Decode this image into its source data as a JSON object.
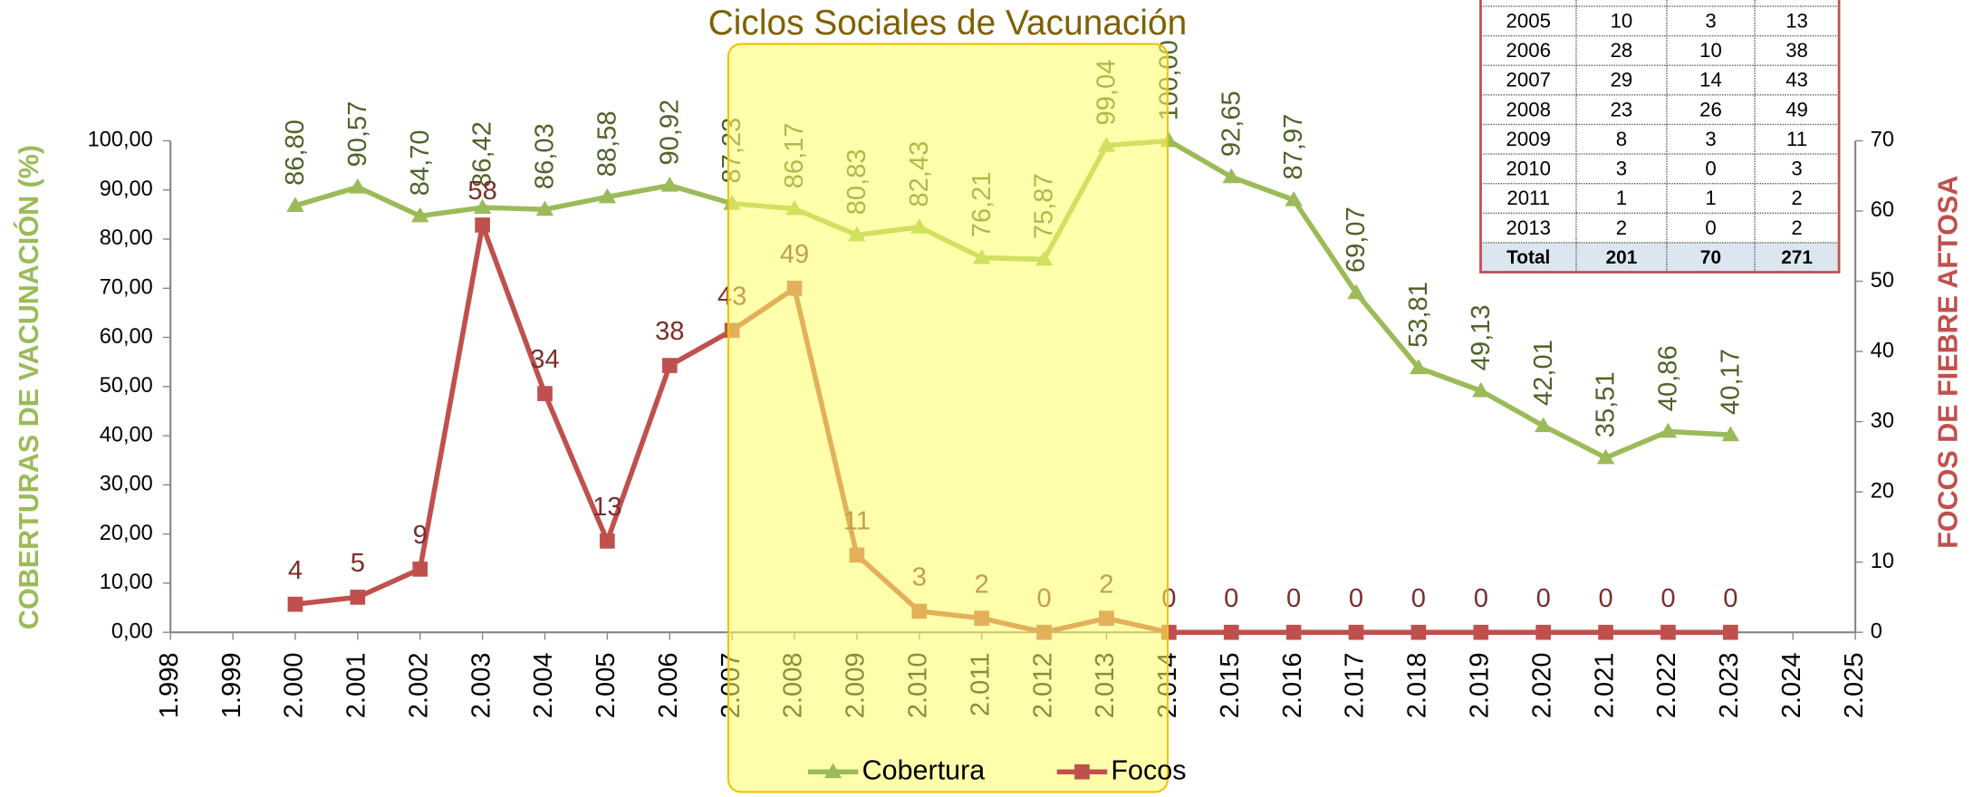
{
  "chart_data": {
    "type": "line",
    "title": "Ciclos Sociales de Vacunación",
    "ylabel": "COBERTURAS DE VACUNACIÓN (%)",
    "y2label": "FOCOS DE FIEBRE AFTOSA",
    "x": [
      2000,
      2001,
      2002,
      2003,
      2004,
      2005,
      2006,
      2007,
      2008,
      2009,
      2010,
      2011,
      2012,
      2013,
      2014,
      2015,
      2016,
      2017,
      2018,
      2019,
      2020,
      2021,
      2022,
      2023
    ],
    "series": [
      {
        "name": "Cobertura",
        "color": "#9bbb59",
        "marker": "triangle",
        "values": [
          86.8,
          90.57,
          84.7,
          86.42,
          86.03,
          88.58,
          90.92,
          87.23,
          86.17,
          80.83,
          82.43,
          76.21,
          75.87,
          99.04,
          100.0,
          92.65,
          87.97,
          69.07,
          53.81,
          49.13,
          42.01,
          35.51,
          40.86,
          40.17
        ],
        "value_labels": [
          "86,80",
          "90,57",
          "84,70",
          "86,42",
          "86,03",
          "88,58",
          "90,92",
          "87,23",
          "86,17",
          "80,83",
          "82,43",
          "76,21",
          "75,87",
          "99,04",
          "100,00",
          "92,65",
          "87,97",
          "69,07",
          "53,81",
          "49,13",
          "42,01",
          "35,51",
          "40,86",
          "40,17"
        ]
      },
      {
        "name": "Focos",
        "color": "#c0504d",
        "marker": "square",
        "axis": "y2",
        "values": [
          4,
          5,
          9,
          58,
          34,
          13,
          38,
          43,
          49,
          11,
          3,
          2,
          0,
          2,
          0,
          0,
          0,
          0,
          0,
          0,
          0,
          0,
          0,
          0
        ]
      }
    ],
    "xlim": [
      1998,
      2025
    ],
    "xticks": [
      {
        "value": 1998,
        "label": "1.998"
      },
      {
        "value": 1999,
        "label": "1.999"
      },
      {
        "value": 2000,
        "label": "2.000"
      },
      {
        "value": 2001,
        "label": "2.001"
      },
      {
        "value": 2002,
        "label": "2.002"
      },
      {
        "value": 2003,
        "label": "2.003"
      },
      {
        "value": 2004,
        "label": "2.004"
      },
      {
        "value": 2005,
        "label": "2.005"
      },
      {
        "value": 2006,
        "label": "2.006"
      },
      {
        "value": 2007,
        "label": "2.007"
      },
      {
        "value": 2008,
        "label": "2.008"
      },
      {
        "value": 2009,
        "label": "2.009"
      },
      {
        "value": 2010,
        "label": "2.010"
      },
      {
        "value": 2011,
        "label": "2.011"
      },
      {
        "value": 2012,
        "label": "2.012"
      },
      {
        "value": 2013,
        "label": "2.013"
      },
      {
        "value": 2014,
        "label": "2.014"
      },
      {
        "value": 2015,
        "label": "2.015"
      },
      {
        "value": 2016,
        "label": "2.016"
      },
      {
        "value": 2017,
        "label": "2.017"
      },
      {
        "value": 2018,
        "label": "2.018"
      },
      {
        "value": 2019,
        "label": "2.019"
      },
      {
        "value": 2020,
        "label": "2.020"
      },
      {
        "value": 2021,
        "label": "2.021"
      },
      {
        "value": 2022,
        "label": "2.022"
      },
      {
        "value": 2023,
        "label": "2.023"
      },
      {
        "value": 2024,
        "label": "2.024"
      },
      {
        "value": 2025,
        "label": "2.025"
      }
    ],
    "ylim": [
      0,
      100
    ],
    "yticks": [
      {
        "value": 0,
        "label": "0,00"
      },
      {
        "value": 10,
        "label": "10,00"
      },
      {
        "value": 20,
        "label": "20,00"
      },
      {
        "value": 30,
        "label": "30,00"
      },
      {
        "value": 40,
        "label": "40,00"
      },
      {
        "value": 50,
        "label": "50,00"
      },
      {
        "value": 60,
        "label": "60,00"
      },
      {
        "value": 70,
        "label": "70,00"
      },
      {
        "value": 80,
        "label": "80,00"
      },
      {
        "value": 90,
        "label": "90,00"
      },
      {
        "value": 100,
        "label": "100,00"
      }
    ],
    "y2lim": [
      0,
      70
    ],
    "y2ticks": [
      0,
      10,
      20,
      30,
      40,
      50,
      60,
      70
    ],
    "highlight_x": [
      2007,
      2014
    ],
    "legend": "bottom",
    "table": {
      "rows": [
        [
          "2005",
          "10",
          "3",
          "13"
        ],
        [
          "2006",
          "28",
          "10",
          "38"
        ],
        [
          "2007",
          "29",
          "14",
          "43"
        ],
        [
          "2008",
          "23",
          "26",
          "49"
        ],
        [
          "2009",
          "8",
          "3",
          "11"
        ],
        [
          "2010",
          "3",
          "0",
          "3"
        ],
        [
          "2011",
          "1",
          "1",
          "2"
        ],
        [
          "2013",
          "2",
          "0",
          "2"
        ],
        [
          "Total",
          "201",
          "70",
          "271"
        ]
      ]
    }
  }
}
